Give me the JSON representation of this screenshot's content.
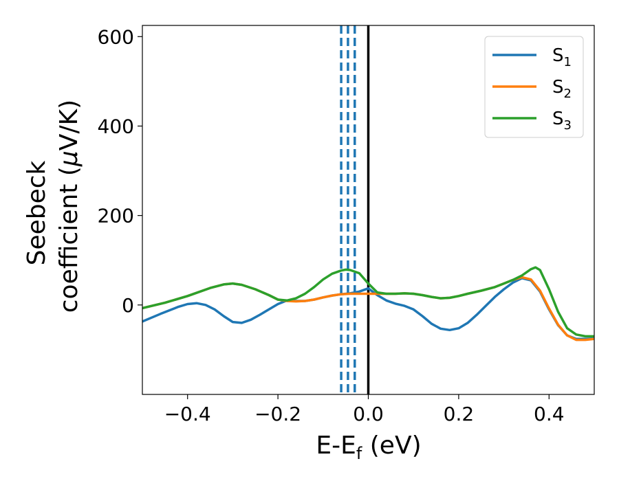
{
  "chart_data": {
    "type": "line",
    "title": "",
    "xlabel": "E-E",
    "xlabel_sub": "f",
    "xlabel_unit": " (eV)",
    "ylabel_line1": "Seebeck",
    "ylabel_line2": "coefficient  (",
    "ylabel_mu": "μ",
    "ylabel_unit": "V/K)",
    "xlim": [
      -0.5,
      0.5
    ],
    "ylim": [
      -200,
      625
    ],
    "xticks": [
      -0.4,
      -0.2,
      0.0,
      0.2,
      0.4
    ],
    "xtick_labels": [
      "−0.4",
      "−0.2",
      "0.0",
      "0.2",
      "0.4"
    ],
    "yticks": [
      0,
      200,
      400,
      600
    ],
    "ytick_labels": [
      "0",
      "200",
      "400",
      "600"
    ],
    "legend_position": "top-right",
    "series": [
      {
        "name": "S",
        "name_sub": "1",
        "color": "#1f77b4",
        "points": [
          [
            -0.5,
            -37
          ],
          [
            -0.46,
            -20
          ],
          [
            -0.42,
            -4
          ],
          [
            -0.4,
            2
          ],
          [
            -0.38,
            4
          ],
          [
            -0.36,
            0
          ],
          [
            -0.34,
            -10
          ],
          [
            -0.32,
            -25
          ],
          [
            -0.3,
            -38
          ],
          [
            -0.28,
            -40
          ],
          [
            -0.26,
            -33
          ],
          [
            -0.24,
            -22
          ],
          [
            -0.22,
            -10
          ],
          [
            -0.2,
            2
          ],
          [
            -0.18,
            10
          ],
          [
            -0.16,
            9
          ],
          [
            -0.14,
            9
          ],
          [
            -0.12,
            12
          ],
          [
            -0.1,
            17
          ],
          [
            -0.08,
            21
          ],
          [
            -0.06,
            24
          ],
          [
            -0.04,
            26
          ],
          [
            -0.02,
            30
          ],
          [
            0.0,
            37
          ],
          [
            0.02,
            22
          ],
          [
            0.04,
            10
          ],
          [
            0.06,
            3
          ],
          [
            0.08,
            -2
          ],
          [
            0.1,
            -10
          ],
          [
            0.12,
            -25
          ],
          [
            0.14,
            -42
          ],
          [
            0.16,
            -53
          ],
          [
            0.18,
            -56
          ],
          [
            0.2,
            -52
          ],
          [
            0.22,
            -40
          ],
          [
            0.24,
            -22
          ],
          [
            0.26,
            -2
          ],
          [
            0.28,
            18
          ],
          [
            0.3,
            35
          ],
          [
            0.32,
            50
          ],
          [
            0.34,
            60
          ],
          [
            0.36,
            55
          ],
          [
            0.38,
            30
          ],
          [
            0.4,
            -10
          ],
          [
            0.42,
            -45
          ],
          [
            0.44,
            -68
          ],
          [
            0.46,
            -76
          ],
          [
            0.48,
            -76
          ],
          [
            0.5,
            -75
          ]
        ]
      },
      {
        "name": "S",
        "name_sub": "2",
        "color": "#ff7f0e",
        "points": [
          [
            -0.5,
            -7
          ],
          [
            -0.45,
            5
          ],
          [
            -0.4,
            20
          ],
          [
            -0.35,
            38
          ],
          [
            -0.32,
            46
          ],
          [
            -0.3,
            48
          ],
          [
            -0.28,
            45
          ],
          [
            -0.25,
            35
          ],
          [
            -0.22,
            22
          ],
          [
            -0.2,
            12
          ],
          [
            -0.18,
            9
          ],
          [
            -0.16,
            8
          ],
          [
            -0.14,
            9
          ],
          [
            -0.12,
            12
          ],
          [
            -0.1,
            17
          ],
          [
            -0.08,
            21
          ],
          [
            -0.06,
            24
          ],
          [
            -0.04,
            25
          ],
          [
            -0.02,
            25
          ],
          [
            0.0,
            25
          ],
          [
            0.02,
            25
          ],
          [
            0.04,
            25
          ],
          [
            0.06,
            25
          ],
          [
            0.08,
            26
          ],
          [
            0.1,
            25
          ],
          [
            0.12,
            22
          ],
          [
            0.14,
            18
          ],
          [
            0.16,
            15
          ],
          [
            0.18,
            16
          ],
          [
            0.2,
            20
          ],
          [
            0.22,
            25
          ],
          [
            0.25,
            32
          ],
          [
            0.28,
            40
          ],
          [
            0.3,
            48
          ],
          [
            0.32,
            56
          ],
          [
            0.34,
            62
          ],
          [
            0.36,
            57
          ],
          [
            0.38,
            32
          ],
          [
            0.4,
            -8
          ],
          [
            0.42,
            -44
          ],
          [
            0.44,
            -68
          ],
          [
            0.46,
            -78
          ],
          [
            0.48,
            -78
          ],
          [
            0.5,
            -76
          ]
        ]
      },
      {
        "name": "S",
        "name_sub": "3",
        "color": "#2ca02c",
        "points": [
          [
            -0.5,
            -7
          ],
          [
            -0.45,
            5
          ],
          [
            -0.4,
            20
          ],
          [
            -0.35,
            38
          ],
          [
            -0.32,
            46
          ],
          [
            -0.3,
            48
          ],
          [
            -0.28,
            45
          ],
          [
            -0.25,
            35
          ],
          [
            -0.22,
            22
          ],
          [
            -0.2,
            12
          ],
          [
            -0.18,
            10
          ],
          [
            -0.16,
            15
          ],
          [
            -0.14,
            25
          ],
          [
            -0.12,
            40
          ],
          [
            -0.1,
            57
          ],
          [
            -0.08,
            70
          ],
          [
            -0.06,
            77
          ],
          [
            -0.05,
            79
          ],
          [
            -0.04,
            78
          ],
          [
            -0.02,
            71
          ],
          [
            0.0,
            48
          ],
          [
            0.02,
            28
          ],
          [
            0.04,
            25
          ],
          [
            0.06,
            25
          ],
          [
            0.08,
            26
          ],
          [
            0.1,
            25
          ],
          [
            0.12,
            22
          ],
          [
            0.14,
            18
          ],
          [
            0.16,
            15
          ],
          [
            0.18,
            16
          ],
          [
            0.2,
            20
          ],
          [
            0.22,
            25
          ],
          [
            0.25,
            32
          ],
          [
            0.28,
            40
          ],
          [
            0.3,
            48
          ],
          [
            0.32,
            56
          ],
          [
            0.34,
            66
          ],
          [
            0.36,
            80
          ],
          [
            0.37,
            84
          ],
          [
            0.38,
            78
          ],
          [
            0.4,
            35
          ],
          [
            0.42,
            -15
          ],
          [
            0.44,
            -52
          ],
          [
            0.46,
            -66
          ],
          [
            0.48,
            -70
          ],
          [
            0.5,
            -70
          ]
        ]
      }
    ],
    "vlines": [
      {
        "x": -0.06,
        "color": "#1f77b4",
        "style": "dashed"
      },
      {
        "x": -0.045,
        "color": "#1f77b4",
        "style": "dashed"
      },
      {
        "x": -0.03,
        "color": "#1f77b4",
        "style": "dashed"
      },
      {
        "x": 0.0,
        "color": "#000000",
        "style": "solid"
      }
    ]
  }
}
